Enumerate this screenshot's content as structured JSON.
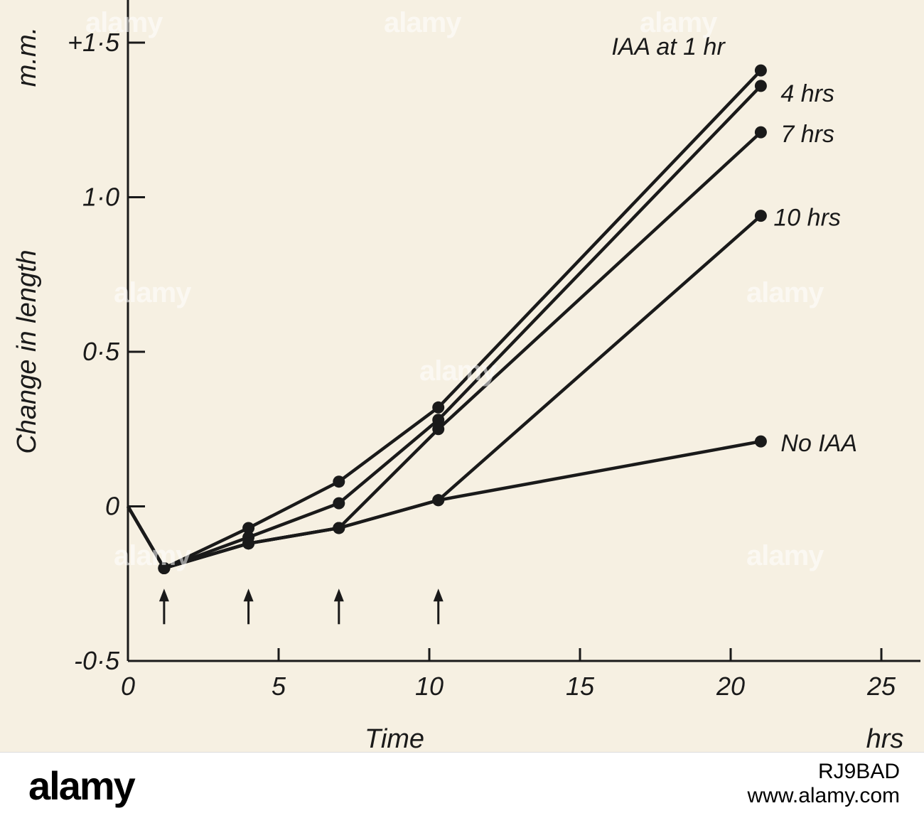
{
  "chart_data": {
    "type": "line",
    "xlabel": "Time",
    "ylabel": "Change in length",
    "x_unit_label": "hrs",
    "y_unit_label": "m.m.",
    "xlim": [
      0,
      25
    ],
    "ylim": [
      -0.5,
      1.5
    ],
    "x_ticks": [
      0,
      5,
      10,
      15,
      20,
      25
    ],
    "x_tick_labels": [
      "0",
      "5",
      "10",
      "15",
      "20",
      "25"
    ],
    "y_ticks": [
      -0.5,
      0,
      0.5,
      1.0,
      1.5
    ],
    "y_tick_labels": [
      "-0·5",
      "0",
      "0·5",
      "1·0",
      "+1·5"
    ],
    "arrows_at_x": [
      1.2,
      4,
      7,
      10.3
    ],
    "series": [
      {
        "name": "IAA at 1 hr",
        "x": [
          0,
          1.2,
          4,
          7,
          10.3,
          21
        ],
        "y": [
          0,
          -0.2,
          -0.07,
          0.08,
          0.32,
          1.41
        ]
      },
      {
        "name": "4 hrs",
        "x": [
          0,
          1.2,
          4,
          7,
          10.3,
          21
        ],
        "y": [
          0,
          -0.2,
          -0.1,
          0.01,
          0.28,
          1.36
        ]
      },
      {
        "name": "7 hrs",
        "x": [
          0,
          1.2,
          4,
          7,
          10.3,
          21
        ],
        "y": [
          0,
          -0.2,
          -0.12,
          -0.07,
          0.25,
          1.21
        ]
      },
      {
        "name": "10 hrs",
        "x": [
          0,
          1.2,
          4,
          7,
          10.3,
          21
        ],
        "y": [
          0,
          -0.2,
          -0.12,
          -0.07,
          0.02,
          0.94
        ]
      },
      {
        "name": "No IAA",
        "x": [
          0,
          1.2,
          4,
          7,
          10.3,
          21
        ],
        "y": [
          0,
          -0.2,
          -0.12,
          -0.07,
          0.02,
          0.21
        ]
      }
    ],
    "series_labels": [
      "IAA at 1 hr",
      "4 hrs",
      "7 hrs",
      "10 hrs",
      "No IAA"
    ],
    "colors": {
      "ink": "#1a1a1a",
      "paper": "#f6f0e2"
    }
  },
  "watermark": {
    "text": "alamy"
  },
  "footer": {
    "logo": "alamy",
    "image_id": "RJ9BAD",
    "url": "www.alamy.com"
  }
}
